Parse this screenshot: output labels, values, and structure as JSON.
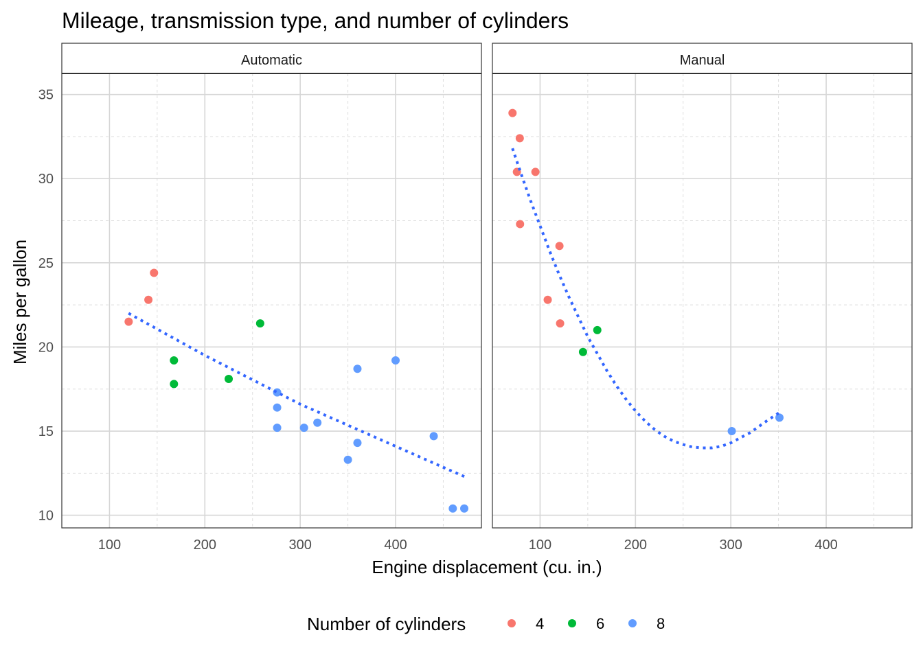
{
  "chart_data": {
    "type": "scatter",
    "title": "Mileage, transmission type, and number of cylinders",
    "xlabel": "Engine displacement (cu. in.)",
    "ylabel": "Miles per gallon",
    "xlim": [
      50,
      490
    ],
    "ylim": [
      9.25,
      36.25
    ],
    "x_ticks": [
      100,
      200,
      300,
      400
    ],
    "y_ticks": [
      10,
      15,
      20,
      25,
      30,
      35
    ],
    "grid": true,
    "legend": {
      "title": "Number of cylinders",
      "position": "bottom",
      "entries": [
        {
          "label": "4",
          "color": "#F8766D"
        },
        {
          "label": "6",
          "color": "#00BA38"
        },
        {
          "label": "8",
          "color": "#619CFF"
        }
      ]
    },
    "trend_color": "#3366FF",
    "panels": [
      {
        "name": "Automatic",
        "points": [
          {
            "x": 120.1,
            "y": 21.5,
            "cyl": "4"
          },
          {
            "x": 140.8,
            "y": 22.8,
            "cyl": "4"
          },
          {
            "x": 146.7,
            "y": 24.4,
            "cyl": "4"
          },
          {
            "x": 167.6,
            "y": 19.2,
            "cyl": "6"
          },
          {
            "x": 167.6,
            "y": 17.8,
            "cyl": "6"
          },
          {
            "x": 225.0,
            "y": 18.1,
            "cyl": "6"
          },
          {
            "x": 258.0,
            "y": 21.4,
            "cyl": "6"
          },
          {
            "x": 275.8,
            "y": 17.3,
            "cyl": "8"
          },
          {
            "x": 275.8,
            "y": 16.4,
            "cyl": "8"
          },
          {
            "x": 275.8,
            "y": 15.2,
            "cyl": "8"
          },
          {
            "x": 304.0,
            "y": 15.2,
            "cyl": "8"
          },
          {
            "x": 318.0,
            "y": 15.5,
            "cyl": "8"
          },
          {
            "x": 350.0,
            "y": 13.3,
            "cyl": "8"
          },
          {
            "x": 360.0,
            "y": 18.7,
            "cyl": "8"
          },
          {
            "x": 360.0,
            "y": 14.3,
            "cyl": "8"
          },
          {
            "x": 400.0,
            "y": 19.2,
            "cyl": "8"
          },
          {
            "x": 440.0,
            "y": 14.7,
            "cyl": "8"
          },
          {
            "x": 460.0,
            "y": 10.4,
            "cyl": "8"
          },
          {
            "x": 472.0,
            "y": 10.4,
            "cyl": "8"
          }
        ],
        "trend": [
          {
            "x": 120,
            "y": 22.0
          },
          {
            "x": 200,
            "y": 19.5
          },
          {
            "x": 300,
            "y": 16.6
          },
          {
            "x": 400,
            "y": 14.1
          },
          {
            "x": 472,
            "y": 12.3
          }
        ]
      },
      {
        "name": "Manual",
        "points": [
          {
            "x": 71.1,
            "y": 33.9,
            "cyl": "4"
          },
          {
            "x": 78.7,
            "y": 32.4,
            "cyl": "4"
          },
          {
            "x": 75.7,
            "y": 30.4,
            "cyl": "4"
          },
          {
            "x": 95.1,
            "y": 30.4,
            "cyl": "4"
          },
          {
            "x": 79.0,
            "y": 27.3,
            "cyl": "4"
          },
          {
            "x": 120.3,
            "y": 26.0,
            "cyl": "4"
          },
          {
            "x": 108.0,
            "y": 22.8,
            "cyl": "4"
          },
          {
            "x": 121.0,
            "y": 21.4,
            "cyl": "4"
          },
          {
            "x": 160.0,
            "y": 21.0,
            "cyl": "6"
          },
          {
            "x": 145.0,
            "y": 19.7,
            "cyl": "6"
          },
          {
            "x": 301.0,
            "y": 15.0,
            "cyl": "8"
          },
          {
            "x": 351.0,
            "y": 15.8,
            "cyl": "8"
          }
        ],
        "trend": [
          {
            "x": 71,
            "y": 31.8
          },
          {
            "x": 80,
            "y": 30.3
          },
          {
            "x": 90,
            "y": 28.7
          },
          {
            "x": 100,
            "y": 27.2
          },
          {
            "x": 110,
            "y": 25.7
          },
          {
            "x": 120,
            "y": 24.3
          },
          {
            "x": 130,
            "y": 23.0
          },
          {
            "x": 140,
            "y": 21.8
          },
          {
            "x": 150,
            "y": 20.6
          },
          {
            "x": 160,
            "y": 19.6
          },
          {
            "x": 170,
            "y": 18.6
          },
          {
            "x": 180,
            "y": 17.7
          },
          {
            "x": 190,
            "y": 16.9
          },
          {
            "x": 200,
            "y": 16.2
          },
          {
            "x": 210,
            "y": 15.6
          },
          {
            "x": 220,
            "y": 15.1
          },
          {
            "x": 230,
            "y": 14.7
          },
          {
            "x": 240,
            "y": 14.4
          },
          {
            "x": 250,
            "y": 14.2
          },
          {
            "x": 260,
            "y": 14.05
          },
          {
            "x": 270,
            "y": 14.0
          },
          {
            "x": 280,
            "y": 14.0
          },
          {
            "x": 290,
            "y": 14.1
          },
          {
            "x": 300,
            "y": 14.3
          },
          {
            "x": 310,
            "y": 14.6
          },
          {
            "x": 320,
            "y": 14.9
          },
          {
            "x": 330,
            "y": 15.3
          },
          {
            "x": 340,
            "y": 15.7
          },
          {
            "x": 351,
            "y": 16.1
          }
        ]
      }
    ]
  }
}
